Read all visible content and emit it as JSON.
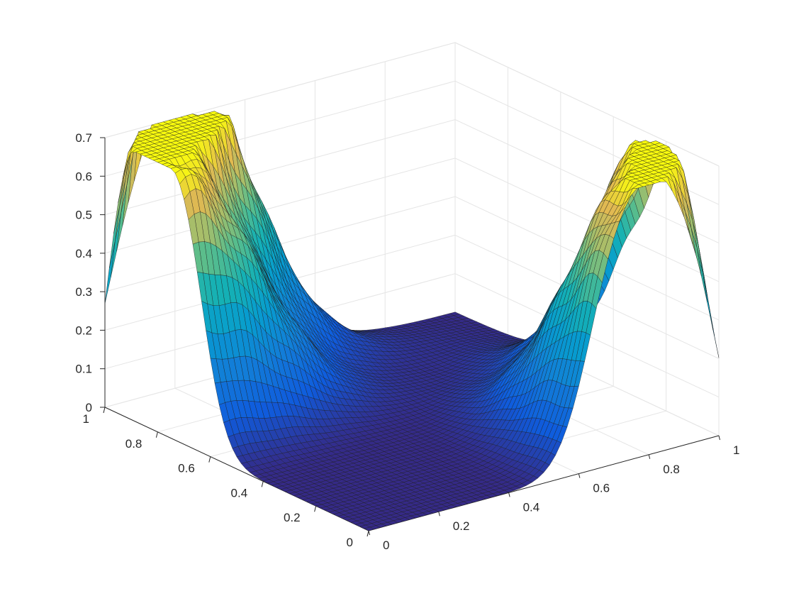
{
  "chart_data": {
    "type": "surface",
    "title": "",
    "xlabel": "",
    "ylabel": "",
    "zlabel": "",
    "colormap": "parula",
    "xlim": [
      0,
      1
    ],
    "ylim": [
      0,
      1
    ],
    "zlim": [
      0,
      0.7
    ],
    "grid": true,
    "x_ticks": [
      "0",
      "0.2",
      "0.4",
      "0.6",
      "0.8",
      "1"
    ],
    "y_ticks": [
      "0",
      "0.2",
      "0.4",
      "0.6",
      "0.8",
      "1"
    ],
    "z_ticks": [
      "0",
      "0.1",
      "0.2",
      "0.3",
      "0.4",
      "0.5",
      "0.6",
      "0.7"
    ],
    "resolution": 60,
    "surface": {
      "description_of_shape": [
        {
          "ridge": "back-left",
          "peak_positions": [
            [
              0.02,
              0.72
            ],
            [
              0.02,
              0.88
            ],
            [
              0.15,
              0.95
            ]
          ],
          "peak_height": 0.7
        },
        {
          "ridge": "front-right",
          "peak_positions": [
            [
              0.72,
              0.02
            ],
            [
              0.88,
              0.02
            ],
            [
              0.95,
              0.15
            ]
          ],
          "peak_height": 0.62
        }
      ]
    }
  }
}
